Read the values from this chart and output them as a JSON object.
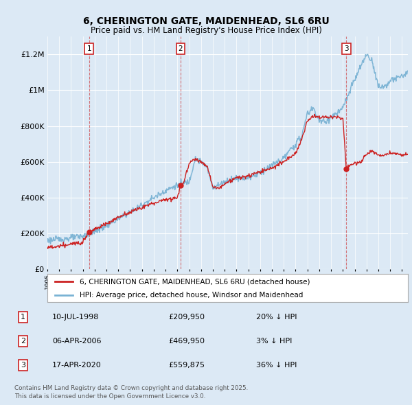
{
  "title_line1": "6, CHERINGTON GATE, MAIDENHEAD, SL6 6RU",
  "title_line2": "Price paid vs. HM Land Registry's House Price Index (HPI)",
  "hpi_color": "#7ab3d4",
  "price_color": "#cc2222",
  "background_color": "#dce9f5",
  "chart_bg_color": "#dce9f5",
  "ylim": [
    0,
    1300000
  ],
  "yticks": [
    0,
    200000,
    400000,
    600000,
    800000,
    1000000,
    1200000
  ],
  "ytick_labels": [
    "£0",
    "£200K",
    "£400K",
    "£600K",
    "£800K",
    "£1M",
    "£1.2M"
  ],
  "legend_entry1": "6, CHERINGTON GATE, MAIDENHEAD, SL6 6RU (detached house)",
  "legend_entry2": "HPI: Average price, detached house, Windsor and Maidenhead",
  "sale1_label": "1",
  "sale1_date": "10-JUL-1998",
  "sale1_price": "£209,950",
  "sale1_hpi": "20% ↓ HPI",
  "sale1_year": 1998.53,
  "sale1_value": 209950,
  "sale2_label": "2",
  "sale2_date": "06-APR-2006",
  "sale2_price": "£469,950",
  "sale2_hpi": "3% ↓ HPI",
  "sale2_year": 2006.27,
  "sale2_value": 469950,
  "sale3_label": "3",
  "sale3_date": "17-APR-2020",
  "sale3_price": "£559,875",
  "sale3_hpi": "36% ↓ HPI",
  "sale3_year": 2020.29,
  "sale3_value": 559875,
  "footer_line1": "Contains HM Land Registry data © Crown copyright and database right 2025.",
  "footer_line2": "This data is licensed under the Open Government Licence v3.0."
}
